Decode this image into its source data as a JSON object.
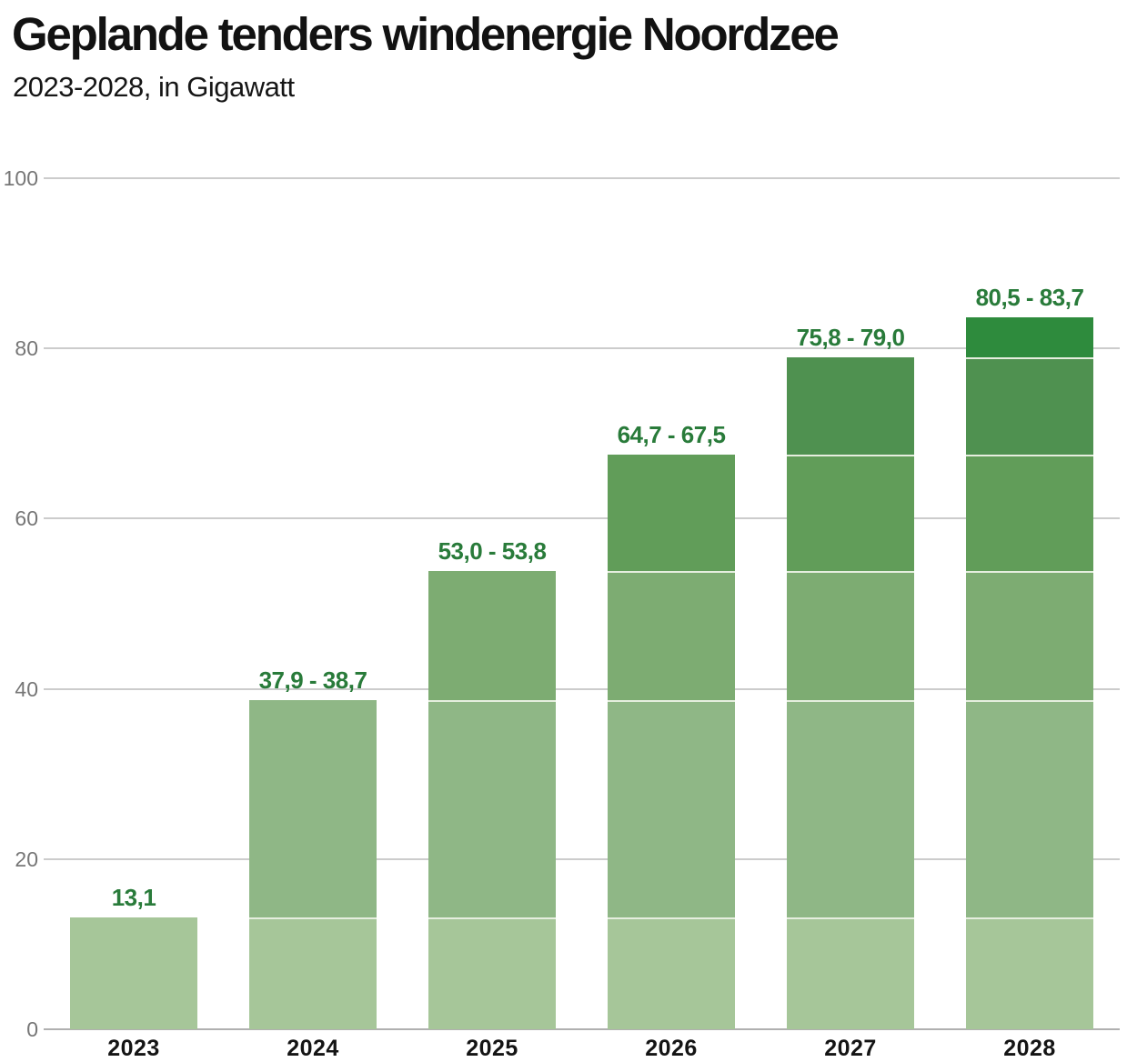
{
  "header": {
    "title": "Geplande tenders windenergie Noordzee",
    "subtitle": "2023-2028, in Gigawatt"
  },
  "chart_data": {
    "type": "bar",
    "subtype": "stacked-cumulative",
    "title": "Geplande tenders windenergie Noordzee",
    "subtitle": "2023-2028, in Gigawatt",
    "unit": "Gigawatt",
    "ylim": [
      0,
      100
    ],
    "yticks": [
      0,
      20,
      40,
      60,
      80,
      100
    ],
    "grid": "horizontal",
    "legend": "none",
    "categories": [
      "2023",
      "2024",
      "2025",
      "2026",
      "2027",
      "2028"
    ],
    "bar_labels": [
      "13,1",
      "37,9 - 38,7",
      "53,0 - 53,8",
      "64,7 - 67,5",
      "75,8 - 79,0",
      "80,5 - 83,7"
    ],
    "cumulative_low": [
      13.1,
      37.9,
      53.0,
      64.7,
      75.8,
      80.5
    ],
    "cumulative_high": [
      13.1,
      38.7,
      53.8,
      67.5,
      79.0,
      83.7
    ],
    "plotted_total": "cumulative_high",
    "segment_colors_by_year": [
      "#a6c699",
      "#8fb786",
      "#7dac72",
      "#619d59",
      "#4f9150",
      "#2e8b3d"
    ],
    "bar_label_color": "#297b3a",
    "axis": {
      "tick_label_color": "#767676",
      "grid_color": "#cccccc",
      "baseline_color": "#b0b0b0"
    }
  }
}
